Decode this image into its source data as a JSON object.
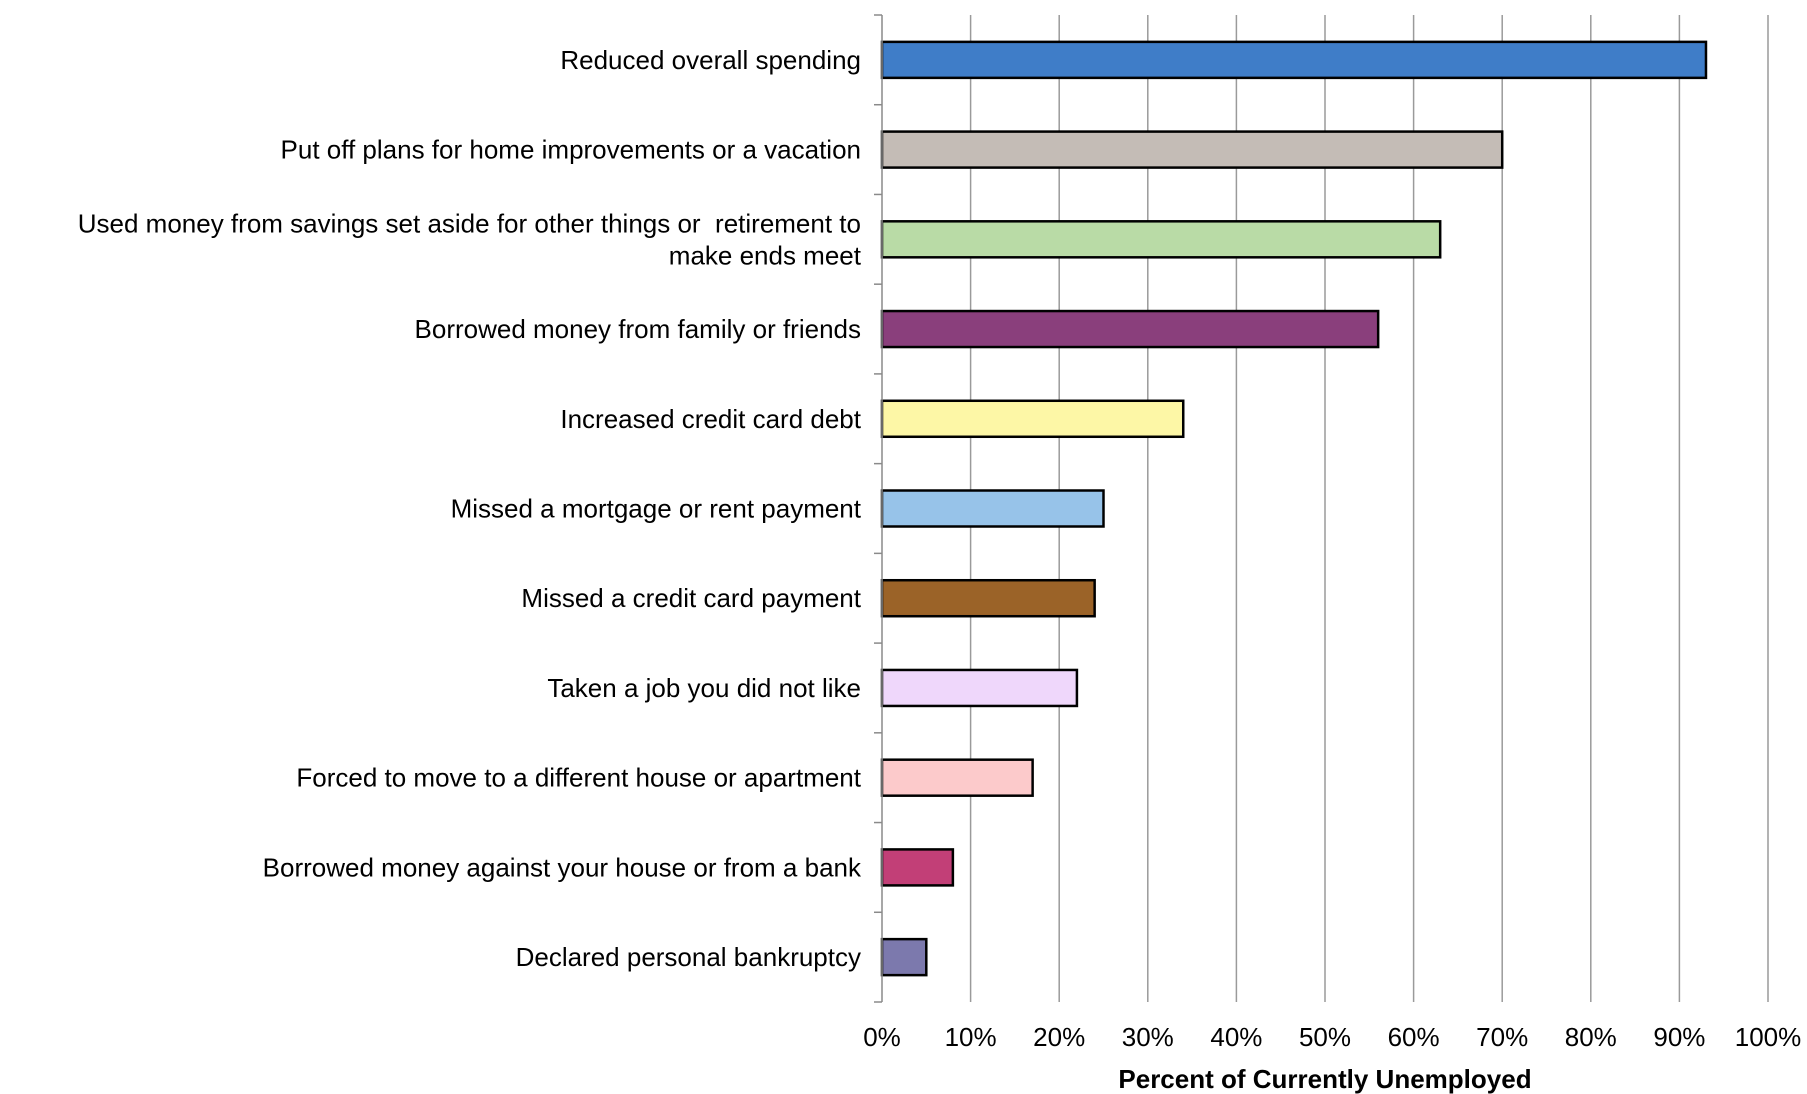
{
  "chart_data": {
    "type": "bar",
    "orientation": "horizontal",
    "categories": [
      "Reduced overall spending",
      "Put off plans for home improvements or a vacation",
      "Used money from savings set aside for other things or  retirement to make ends meet",
      "Borrowed money from family or friends",
      "Increased credit card debt",
      "Missed a mortgage or rent payment",
      "Missed a credit card payment",
      "Taken a job you did not like",
      "Forced to move to a different house or apartment",
      "Borrowed money against your house or from a bank",
      "Declared personal bankruptcy"
    ],
    "category_lines": [
      [
        "Reduced overall spending"
      ],
      [
        "Put off plans for home improvements or a vacation"
      ],
      [
        "Used money from savings set aside for other things or  retirement to",
        "make ends meet"
      ],
      [
        "Borrowed money from family or friends"
      ],
      [
        "Increased credit card debt"
      ],
      [
        "Missed a mortgage or rent payment"
      ],
      [
        "Missed a credit card payment"
      ],
      [
        "Taken a job you did not like"
      ],
      [
        "Forced to move to a different house or apartment"
      ],
      [
        "Borrowed money against your house or from a bank"
      ],
      [
        "Declared personal bankruptcy"
      ]
    ],
    "values": [
      93,
      70,
      63,
      56,
      34,
      25,
      24,
      22,
      17,
      8,
      5
    ],
    "colors": [
      "#3f7dc8",
      "#c4bcb6",
      "#b9dba6",
      "#8a3f7c",
      "#fdf7a6",
      "#97c3e9",
      "#9b6328",
      "#efd7fb",
      "#fccacb",
      "#c23f77",
      "#7c79ad"
    ],
    "xlabel": "Percent of Currently Unemployed",
    "ylabel": "",
    "xlim": [
      0,
      100
    ],
    "xticks": [
      0,
      10,
      20,
      30,
      40,
      50,
      60,
      70,
      80,
      90,
      100
    ],
    "xtick_labels": [
      "0%",
      "10%",
      "20%",
      "30%",
      "40%",
      "50%",
      "60%",
      "70%",
      "80%",
      "90%",
      "100%"
    ],
    "grid": "vertical"
  }
}
